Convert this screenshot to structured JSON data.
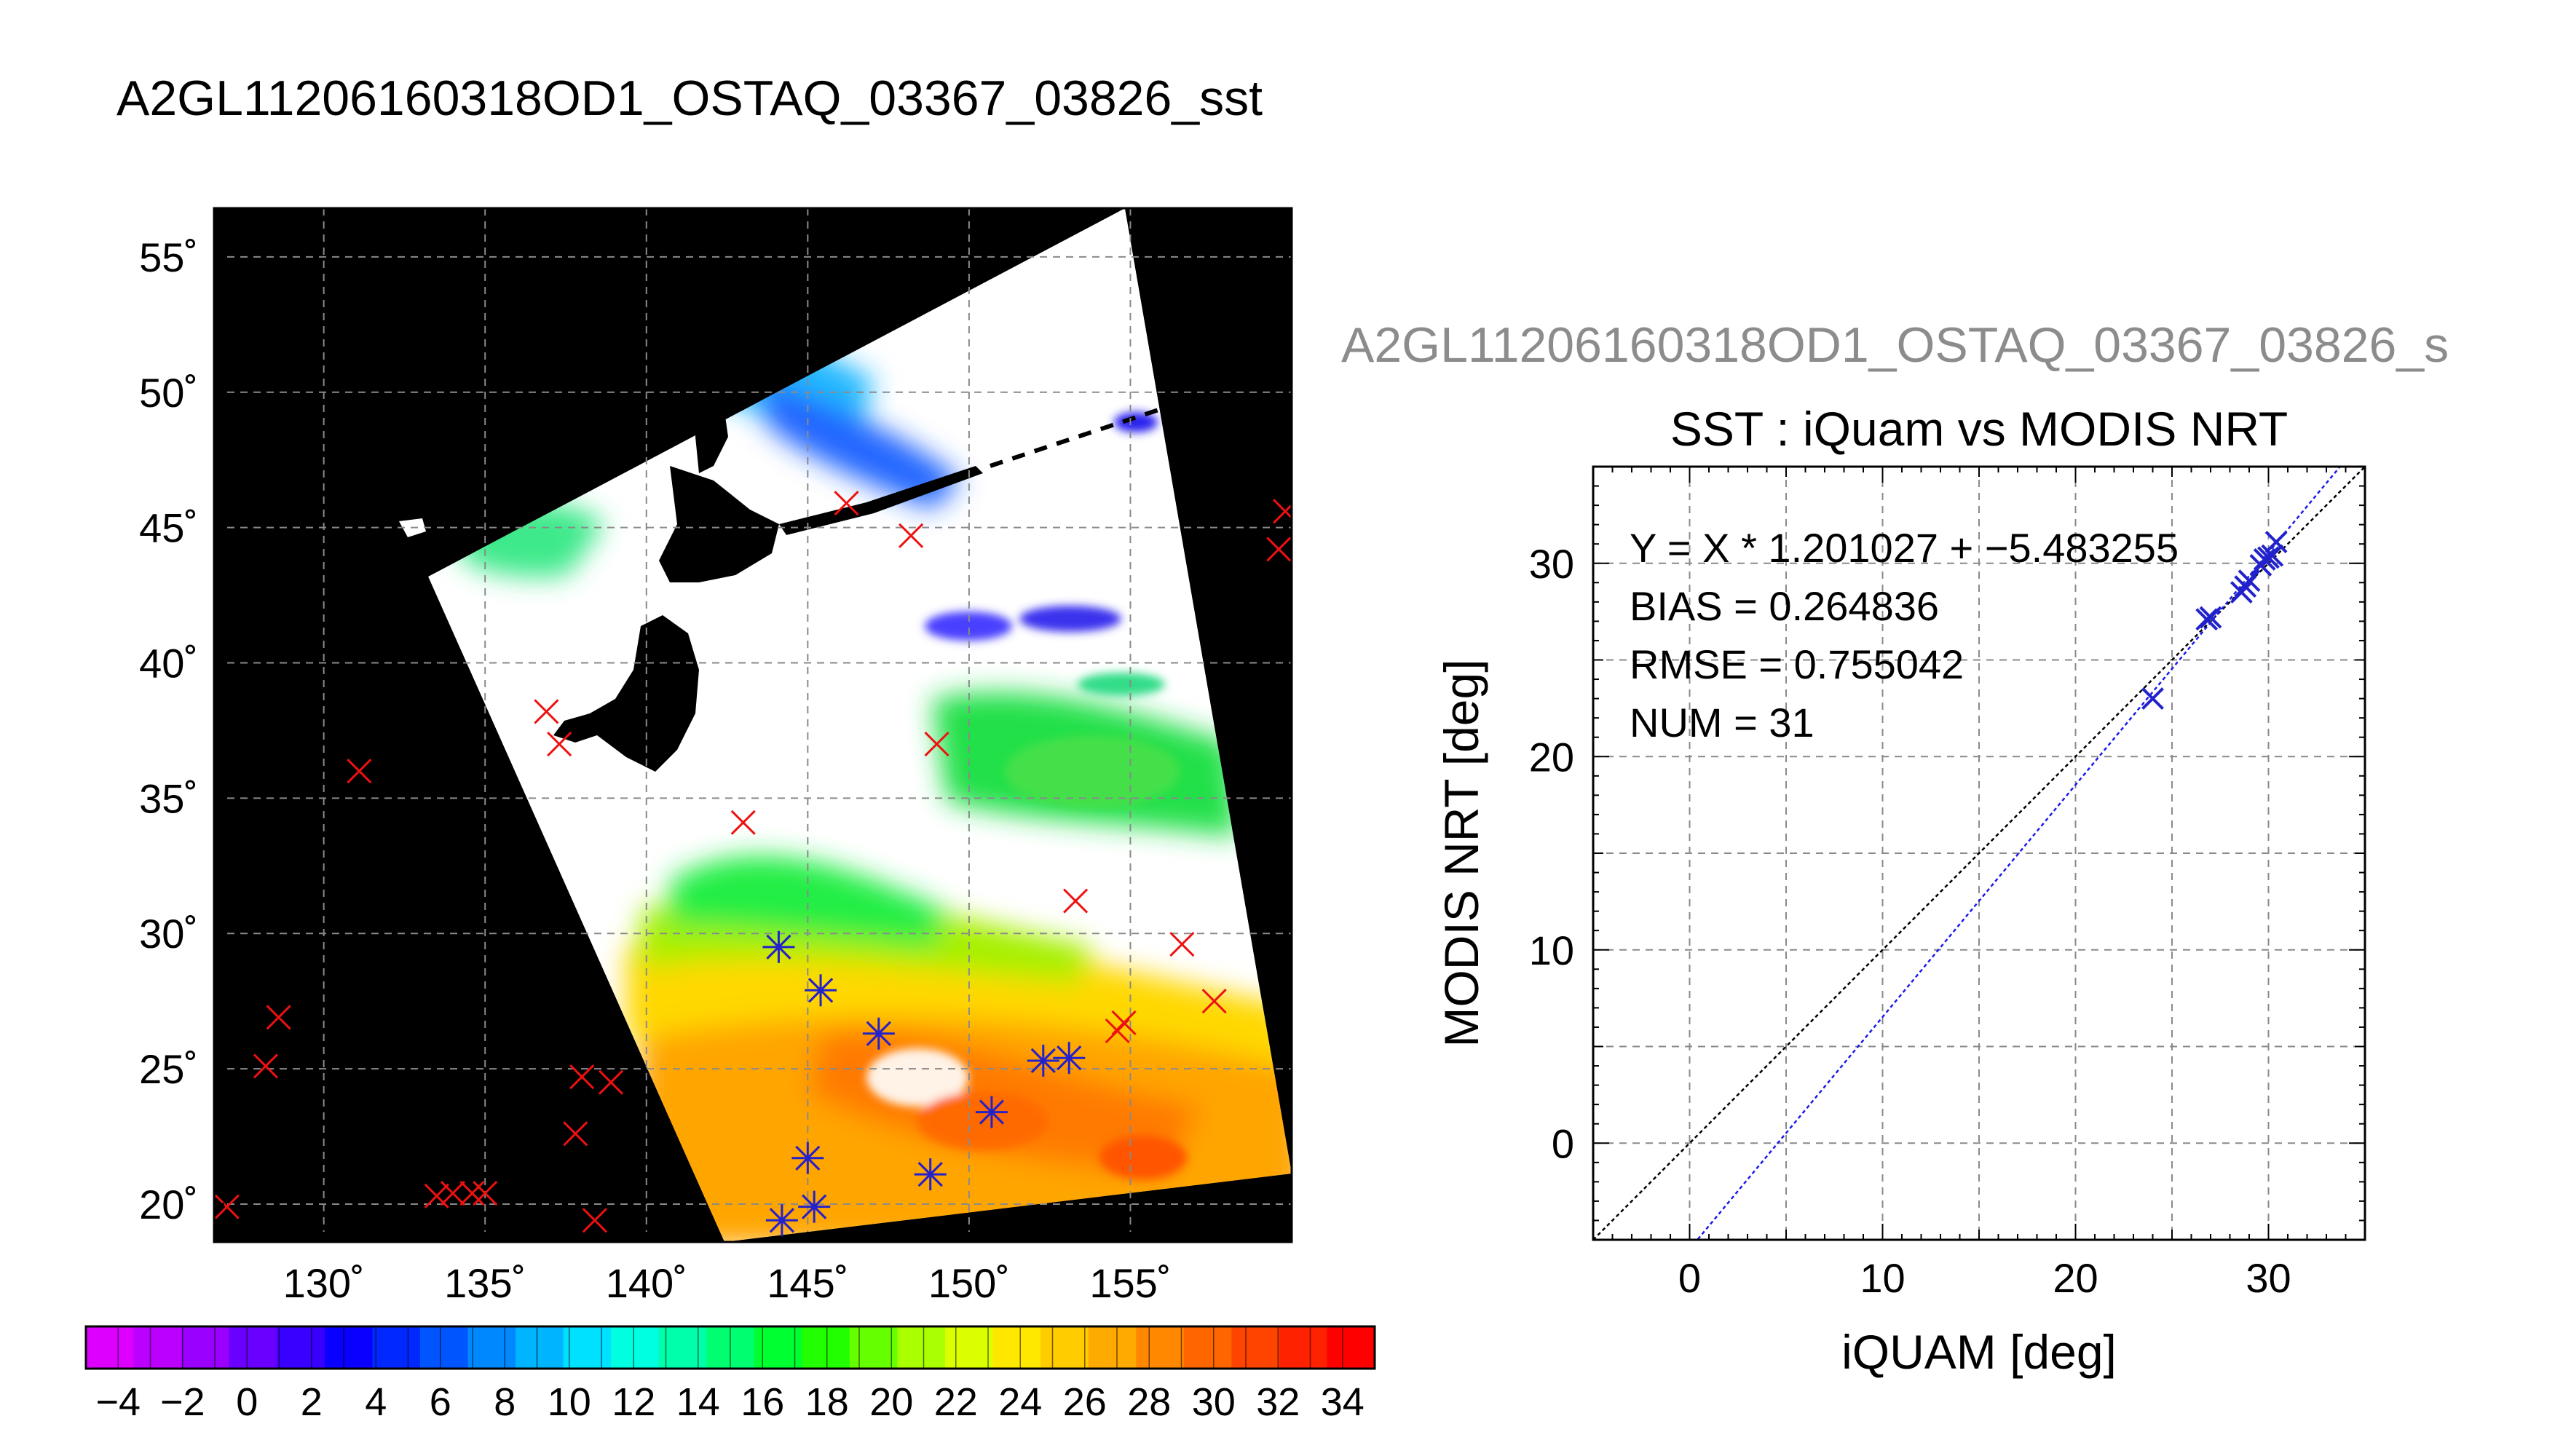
{
  "title": "A2GL11206160318OD1_OSTAQ_03367_03826_sst",
  "colors": {
    "background": "#ffffff",
    "land": "#000000",
    "grid": "#8a8a8a",
    "iquam_marker": "#ee1111",
    "match_marker": "#2222cc",
    "fit_line": "#1a1aee",
    "identity_line": "#000000",
    "right_title": "#8c8c8c"
  },
  "map": {
    "lat_ticks": [
      "55˚",
      "50˚",
      "45˚",
      "40˚",
      "35˚",
      "30˚",
      "25˚",
      "20˚"
    ],
    "lat_values": [
      55,
      50,
      45,
      40,
      35,
      30,
      25,
      20
    ],
    "lon_ticks": [
      "130˚",
      "135˚",
      "140˚",
      "145˚",
      "150˚",
      "155˚"
    ],
    "lon_values": [
      130,
      135,
      140,
      145,
      150,
      155
    ],
    "lon_range": [
      126.6,
      160
    ],
    "lat_range": [
      18.6,
      56.8
    ]
  },
  "colorbar": {
    "tick_labels": [
      "−4",
      "−2",
      "0",
      "2",
      "4",
      "6",
      "8",
      "10",
      "12",
      "14",
      "16",
      "18",
      "20",
      "22",
      "24",
      "26",
      "28",
      "30",
      "32",
      "34"
    ],
    "range": [
      -5,
      35
    ],
    "colors": [
      "#dd00ff",
      "#bb00ff",
      "#9900ff",
      "#6a00ff",
      "#3a00ff",
      "#0a00ff",
      "#0028ff",
      "#0055ff",
      "#0088ff",
      "#00b4ff",
      "#00e0ff",
      "#00ffe0",
      "#00ffaa",
      "#00ff70",
      "#00ff30",
      "#22ff00",
      "#66ff00",
      "#aaff00",
      "#dcff00",
      "#ffe800",
      "#ffcc00",
      "#ffaa00",
      "#ff8800",
      "#ff6600",
      "#ff4400",
      "#ff2200",
      "#ff0000"
    ]
  },
  "scatter": {
    "figure_title": "A2GL11206160318OD1_OSTAQ_03367_03826_s",
    "title": "SST : iQuam vs MODIS NRT",
    "xlabel": "iQUAM [deg]",
    "ylabel": "MODIS NRT [deg]",
    "stats": [
      "Y = X * 1.201027 + −5.483255",
      "BIAS = 0.264836",
      "RMSE = 0.755042",
      "NUM = 31"
    ],
    "x_ticks": [
      "0",
      "10",
      "20",
      "30"
    ],
    "y_ticks": [
      "0",
      "10",
      "20",
      "30"
    ]
  },
  "chart_data": [
    {
      "type": "scatter",
      "title": "SST : iQuam vs MODIS NRT",
      "xlabel": "iQUAM [deg]",
      "ylabel": "MODIS NRT [deg]",
      "xlim": [
        -5,
        35
      ],
      "ylim": [
        -5,
        35
      ],
      "grid": true,
      "fit": {
        "slope": 1.201027,
        "intercept": -5.483255
      },
      "identity_line": true,
      "bias": 0.264836,
      "rmse": 0.755042,
      "num": 31,
      "points": [
        [
          24.0,
          23.0
        ],
        [
          26.8,
          27.1
        ],
        [
          27.0,
          27.2
        ],
        [
          28.6,
          28.5
        ],
        [
          28.8,
          28.8
        ],
        [
          29.0,
          29.1
        ],
        [
          29.6,
          29.9
        ],
        [
          29.8,
          30.2
        ],
        [
          30.0,
          30.3
        ],
        [
          30.2,
          30.4
        ],
        [
          30.4,
          31.1
        ]
      ]
    },
    {
      "type": "map",
      "title": "A2GL11206160318OD1_OSTAQ_03367_03826_sst",
      "colorbar_label_range": [
        -4,
        34
      ],
      "iquam_points": [
        [
          127,
          19.9
        ],
        [
          128.2,
          25.1
        ],
        [
          128.6,
          26.9
        ],
        [
          131.1,
          36.0
        ],
        [
          133.5,
          20.3
        ],
        [
          134.0,
          20.4
        ],
        [
          134.6,
          20.4
        ],
        [
          135.0,
          20.4
        ],
        [
          136.9,
          38.2
        ],
        [
          137.3,
          37.0
        ],
        [
          137.8,
          22.6
        ],
        [
          138.0,
          24.7
        ],
        [
          138.4,
          19.4
        ],
        [
          138.9,
          24.5
        ],
        [
          143.0,
          34.1
        ],
        [
          144.1,
          29.5
        ],
        [
          144.2,
          19.4
        ],
        [
          145.0,
          21.7
        ],
        [
          145.2,
          19.9
        ],
        [
          145.4,
          27.9
        ],
        [
          146.2,
          45.9
        ],
        [
          147.2,
          26.3
        ],
        [
          148.2,
          44.7
        ],
        [
          148.8,
          21.1
        ],
        [
          149.0,
          37.0
        ],
        [
          150.7,
          23.4
        ],
        [
          152.3,
          25.3
        ],
        [
          153.1,
          25.4
        ],
        [
          153.3,
          31.2
        ],
        [
          154.6,
          26.4
        ],
        [
          154.8,
          26.7
        ],
        [
          156.6,
          29.6
        ],
        [
          157.6,
          27.5
        ],
        [
          159.6,
          44.2
        ],
        [
          159.8,
          45.6
        ]
      ],
      "matched_points": [
        [
          144.1,
          29.5
        ],
        [
          144.2,
          19.4
        ],
        [
          145.0,
          21.7
        ],
        [
          145.2,
          19.9
        ],
        [
          145.4,
          27.9
        ],
        [
          147.2,
          26.3
        ],
        [
          148.8,
          21.1
        ],
        [
          150.7,
          23.4
        ],
        [
          152.3,
          25.3
        ],
        [
          153.1,
          25.4
        ]
      ]
    }
  ]
}
